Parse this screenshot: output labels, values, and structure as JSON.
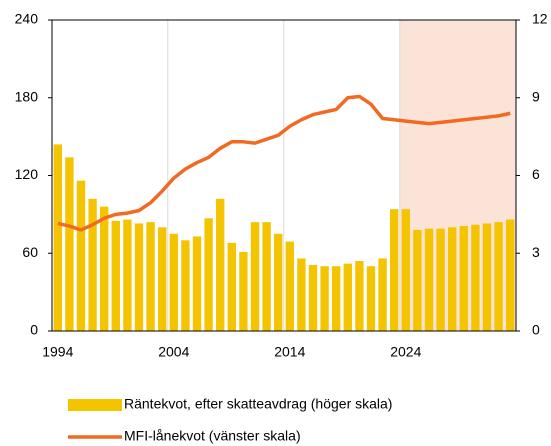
{
  "chart_data": {
    "type": "bar-line",
    "x": [
      1994,
      1995,
      1996,
      1997,
      1998,
      1999,
      2000,
      2001,
      2002,
      2003,
      2004,
      2005,
      2006,
      2007,
      2008,
      2009,
      2010,
      2011,
      2012,
      2013,
      2014,
      2015,
      2016,
      2017,
      2018,
      2019,
      2020,
      2021,
      2022,
      2023,
      2024,
      2025,
      2026,
      2027,
      2028,
      2029,
      2030,
      2031,
      2032,
      2033
    ],
    "xlim": [
      1993.5,
      2033.5
    ],
    "xticks": [
      1994,
      2004,
      2014,
      2024
    ],
    "ylim": [
      0,
      240
    ],
    "yticks": [
      0,
      60,
      120,
      180,
      240
    ],
    "y2lim": [
      0,
      12
    ],
    "y2ticks": [
      0,
      3,
      6,
      9,
      12
    ],
    "grid": "x",
    "shaded_region": {
      "xlim": [
        2023.5,
        2033.5
      ],
      "color": "#fbe3d8"
    },
    "series": [
      {
        "name": "Räntekvot, efter skatteavdrag (höger skala)",
        "type": "bar",
        "axis": "y2",
        "color": "#f5c400",
        "values": [
          7.2,
          6.7,
          5.8,
          5.1,
          4.8,
          4.25,
          4.3,
          4.15,
          4.2,
          4.0,
          3.75,
          3.5,
          3.65,
          4.35,
          5.1,
          3.4,
          3.05,
          4.2,
          4.2,
          3.75,
          3.45,
          2.8,
          2.55,
          2.5,
          2.5,
          2.6,
          2.7,
          2.5,
          2.8,
          4.7,
          4.7,
          3.9,
          3.95,
          3.95,
          4.0,
          4.05,
          4.1,
          4.15,
          4.2,
          4.3
        ]
      },
      {
        "name": "MFI-lånekvot (vänster skala)",
        "type": "line",
        "axis": "y",
        "color": "#f26a21",
        "values": [
          83,
          81,
          78,
          82,
          87,
          90,
          91,
          93,
          99,
          108,
          118,
          125,
          130,
          134,
          141,
          146,
          146,
          145,
          148,
          151,
          158,
          163,
          167,
          169,
          171,
          180,
          181,
          175,
          164,
          163,
          162,
          161,
          160,
          161,
          162,
          163,
          164,
          165,
          166,
          168
        ]
      }
    ]
  }
}
